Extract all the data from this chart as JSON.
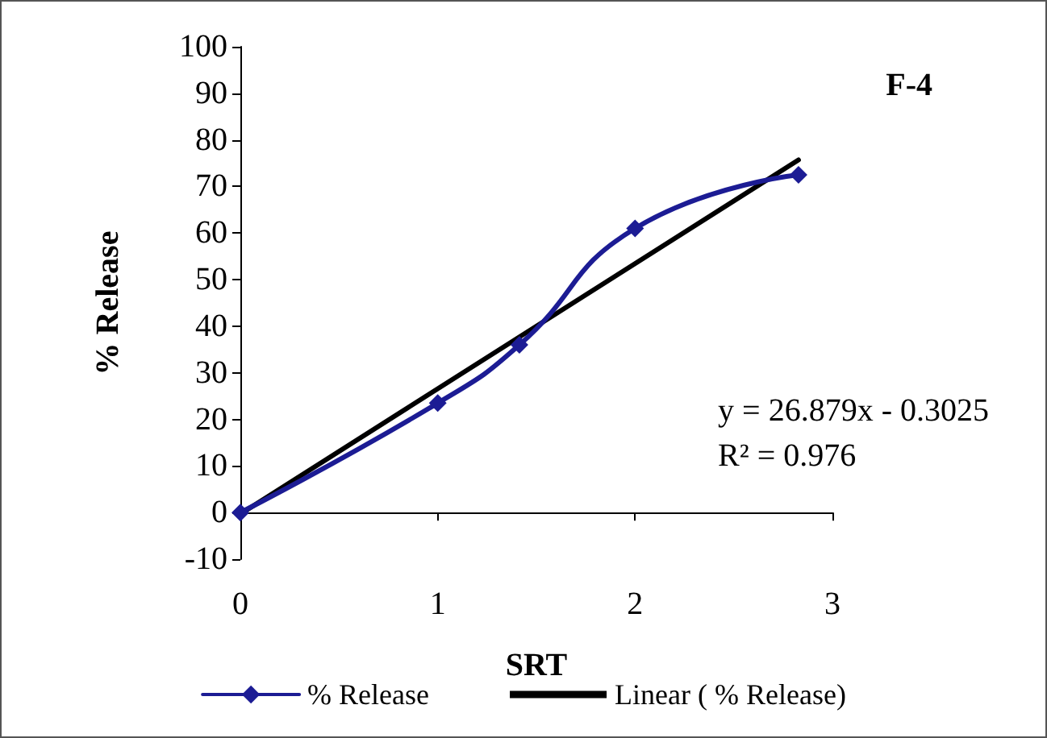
{
  "chart_data": {
    "type": "line",
    "xlabel": "SRT",
    "ylabel": "% Release",
    "x": [
      0,
      1,
      1.414,
      2,
      2.828
    ],
    "series": [
      {
        "name": "% Release",
        "color": "#1c1c94",
        "values": [
          0,
          23.5,
          36,
          61,
          72.5
        ],
        "marker": "diamond"
      },
      {
        "name": "Linear ( % Release)",
        "color": "#000000",
        "x": [
          0,
          2.828
        ],
        "values": [
          -0.3,
          75.7
        ],
        "marker": "none"
      }
    ],
    "xlim": [
      0,
      3
    ],
    "xticks": [
      0,
      1,
      2,
      3
    ],
    "ylim": [
      -10,
      100
    ],
    "yticks": [
      -10,
      0,
      10,
      20,
      30,
      40,
      50,
      60,
      70,
      80,
      90,
      100
    ],
    "annotations": [
      "F-4",
      "y = 26.879x - 0.3025\nR² = 0.976"
    ],
    "legend": "bottom",
    "line_style": "solid"
  }
}
